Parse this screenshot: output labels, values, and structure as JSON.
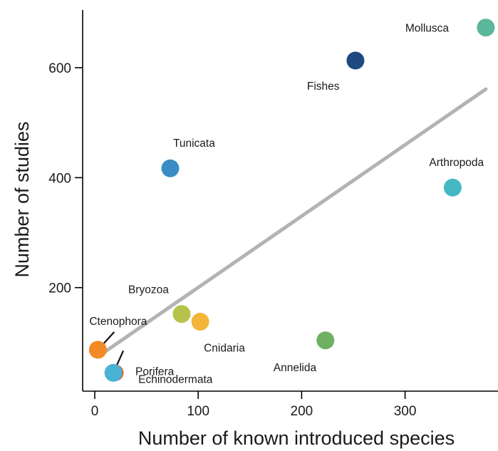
{
  "chart_data": {
    "type": "scatter",
    "title": "",
    "xlabel": "Number of known introduced species",
    "ylabel": "Number of studies",
    "xlim": [
      -10,
      385
    ],
    "ylim": [
      -10,
      700
    ],
    "xticks": [
      "0",
      "100",
      "200",
      "300"
    ],
    "yticks": [
      "200",
      "400",
      "600"
    ],
    "grid": false,
    "legend": "none",
    "points": [
      {
        "label": "Mollusca",
        "x": 378,
        "y": 673,
        "color": "#5bb89a"
      },
      {
        "label": "Fishes",
        "x": 252,
        "y": 613,
        "color": "#1f4a80"
      },
      {
        "label": "Tunicata",
        "x": 73,
        "y": 417,
        "color": "#3a8dc4"
      },
      {
        "label": "Arthropoda",
        "x": 346,
        "y": 382,
        "color": "#45b7c2"
      },
      {
        "label": "Bryozoa",
        "x": 84,
        "y": 152,
        "color": "#b7c24a"
      },
      {
        "label": "Cnidaria",
        "x": 102,
        "y": 138,
        "color": "#f3b63a"
      },
      {
        "label": "Annelida",
        "x": 223,
        "y": 104,
        "color": "#6fb063"
      },
      {
        "label": "Ctenophora",
        "x": 3,
        "y": 87,
        "color": "#f28a25"
      },
      {
        "label": "Porifera",
        "x": 20,
        "y": 45,
        "color": "#e9642a"
      },
      {
        "label": "Echinodermata",
        "x": 18,
        "y": 45,
        "color": "#49b3d6"
      }
    ],
    "trend_line": {
      "x": [
        5,
        378
      ],
      "y": [
        77,
        561
      ],
      "color": "#b3b3b3"
    }
  }
}
